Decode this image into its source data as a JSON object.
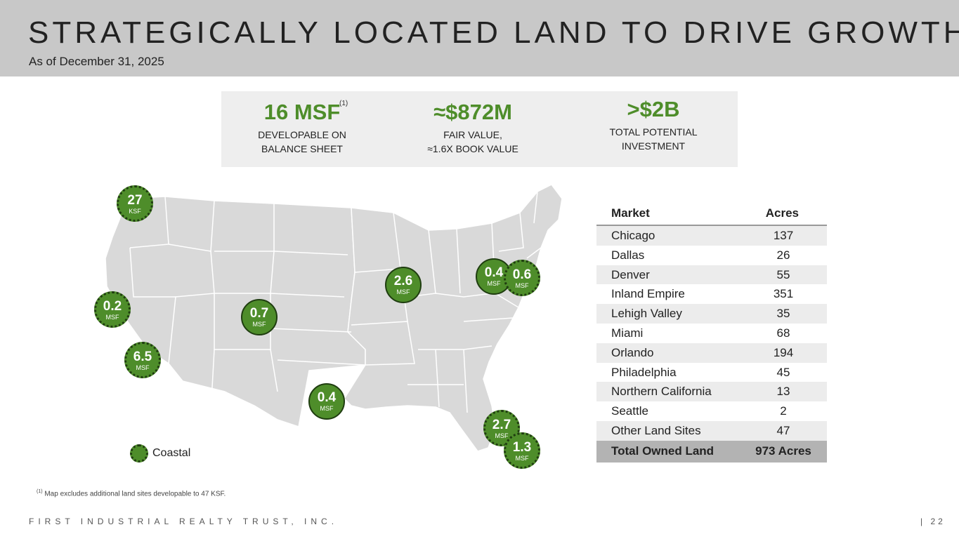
{
  "header": {
    "title": "STRATEGICALLY LOCATED LAND TO DRIVE GROWTH",
    "subtitle": "As of December 31, 2025"
  },
  "stats": [
    {
      "value": "16 MSF",
      "note": "(1)",
      "label_line1": "DEVELOPABLE ON",
      "label_line2": "BALANCE SHEET"
    },
    {
      "value": "≈$872M",
      "label_line1": "FAIR VALUE,",
      "label_line2": "≈1.6X BOOK VALUE"
    },
    {
      "value": ">$2B",
      "label_line1": "TOTAL POTENTIAL",
      "label_line2": "INVESTMENT"
    }
  ],
  "map_markers": [
    {
      "value": "27",
      "unit": "KSF",
      "coastal": true
    },
    {
      "value": "0.2",
      "unit": "MSF",
      "coastal": true
    },
    {
      "value": "6.5",
      "unit": "MSF",
      "coastal": true
    },
    {
      "value": "0.7",
      "unit": "MSF",
      "coastal": false
    },
    {
      "value": "0.4",
      "unit": "MSF",
      "coastal": false
    },
    {
      "value": "2.6",
      "unit": "MSF",
      "coastal": false
    },
    {
      "value": "0.4",
      "unit": "MSF",
      "coastal": false
    },
    {
      "value": "0.6",
      "unit": "MSF",
      "coastal": true
    },
    {
      "value": "2.7",
      "unit": "MSF",
      "coastal": true
    },
    {
      "value": "1.3",
      "unit": "MSF",
      "coastal": true
    }
  ],
  "legend": {
    "label": "Coastal"
  },
  "table": {
    "headers": {
      "market": "Market",
      "acres": "Acres"
    },
    "rows": [
      {
        "market": "Chicago",
        "acres": "137"
      },
      {
        "market": "Dallas",
        "acres": "26"
      },
      {
        "market": "Denver",
        "acres": "55"
      },
      {
        "market": "Inland Empire",
        "acres": "351"
      },
      {
        "market": "Lehigh Valley",
        "acres": "35"
      },
      {
        "market": "Miami",
        "acres": "68"
      },
      {
        "market": "Orlando",
        "acres": "194"
      },
      {
        "market": "Philadelphia",
        "acres": "45"
      },
      {
        "market": "Northern California",
        "acres": "13"
      },
      {
        "market": "Seattle",
        "acres": "2"
      },
      {
        "market": "Other Land Sites",
        "acres": "47"
      }
    ],
    "total": {
      "market": "Total Owned Land",
      "acres": "973 Acres"
    }
  },
  "footnote": {
    "marker": "(1)",
    "text": "Map excludes additional land sites developable to 47 KSF."
  },
  "footer": {
    "company": "FIRST INDUSTRIAL REALTY TRUST, INC.",
    "page": "|  22"
  },
  "colors": {
    "accent": "#4e8d2a",
    "header_bg": "#c8c8c8",
    "map_fill": "#d9d9d9"
  }
}
